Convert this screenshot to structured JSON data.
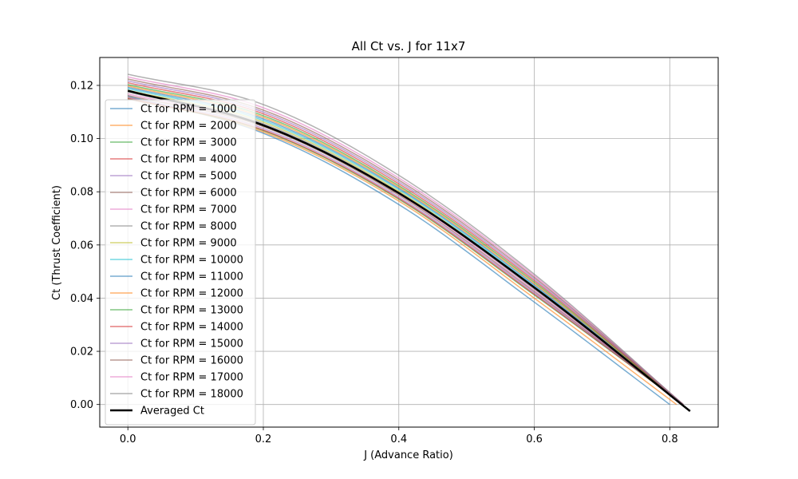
{
  "chart_data": {
    "type": "line",
    "title": "All Ct vs. J for 11x7",
    "xlabel": "J (Advance Ratio)",
    "ylabel": "Ct (Thrust Coefficient)",
    "xlim": [
      -0.0415,
      0.8715
    ],
    "ylim": [
      -0.0085,
      0.1305
    ],
    "xticks": [
      0.0,
      0.2,
      0.4,
      0.6,
      0.8
    ],
    "xtick_labels": [
      "0.0",
      "0.2",
      "0.4",
      "0.6",
      "0.8"
    ],
    "yticks": [
      0.0,
      0.02,
      0.04,
      0.06,
      0.08,
      0.1,
      0.12
    ],
    "ytick_labels": [
      "0.00",
      "0.02",
      "0.04",
      "0.06",
      "0.08",
      "0.10",
      "0.12"
    ],
    "grid": true,
    "legend_position": "left, overlapping plot area",
    "series": [
      {
        "name": "Ct for RPM = 1000",
        "color": "#1f77b4",
        "x": [
          0.0,
          0.2,
          0.4,
          0.6,
          0.8
        ],
        "y": [
          0.116,
          0.102,
          0.0752,
          0.0385,
          0.0
        ]
      },
      {
        "name": "Ct for RPM = 2000",
        "color": "#ff7f0e",
        "x": [
          0.0,
          0.2,
          0.4,
          0.6,
          0.81
        ],
        "y": [
          0.1155,
          0.1025,
          0.0765,
          0.04,
          0.0
        ]
      },
      {
        "name": "Ct for RPM = 3000",
        "color": "#2ca02c",
        "x": [
          0.0,
          0.2,
          0.4,
          0.6,
          0.82
        ],
        "y": [
          0.115,
          0.103,
          0.0772,
          0.0412,
          0.0
        ]
      },
      {
        "name": "Ct for RPM = 4000",
        "color": "#d62728",
        "x": [
          0.0,
          0.2,
          0.4,
          0.6,
          0.82
        ],
        "y": [
          0.115,
          0.1032,
          0.0775,
          0.0415,
          0.0
        ]
      },
      {
        "name": "Ct for RPM = 5000",
        "color": "#9467bd",
        "x": [
          0.0,
          0.2,
          0.4,
          0.6,
          0.82
        ],
        "y": [
          0.1155,
          0.1038,
          0.078,
          0.042,
          0.0
        ]
      },
      {
        "name": "Ct for RPM = 6000",
        "color": "#8c564b",
        "x": [
          0.0,
          0.2,
          0.4,
          0.6,
          0.82
        ],
        "y": [
          0.1162,
          0.1045,
          0.0787,
          0.0425,
          0.0
        ]
      },
      {
        "name": "Ct for RPM = 7000",
        "color": "#e377c2",
        "x": [
          0.0,
          0.2,
          0.4,
          0.6,
          0.82
        ],
        "y": [
          0.1168,
          0.105,
          0.0792,
          0.043,
          0.0
        ]
      },
      {
        "name": "Ct for RPM = 8000",
        "color": "#7f7f7f",
        "x": [
          0.0,
          0.2,
          0.4,
          0.6,
          0.82
        ],
        "y": [
          0.1175,
          0.1056,
          0.0797,
          0.0435,
          0.0
        ]
      },
      {
        "name": "Ct for RPM = 9000",
        "color": "#bcbd22",
        "x": [
          0.0,
          0.2,
          0.4,
          0.6,
          0.82
        ],
        "y": [
          0.1182,
          0.1062,
          0.0802,
          0.044,
          0.0
        ]
      },
      {
        "name": "Ct for RPM = 10000",
        "color": "#17becf",
        "x": [
          0.0,
          0.2,
          0.4,
          0.6,
          0.82
        ],
        "y": [
          0.1188,
          0.1068,
          0.0808,
          0.0445,
          0.0
        ]
      },
      {
        "name": "Ct for RPM = 11000",
        "color": "#1f77b4",
        "x": [
          0.0,
          0.2,
          0.4,
          0.6,
          0.82
        ],
        "y": [
          0.1193,
          0.1074,
          0.0813,
          0.045,
          0.0
        ]
      },
      {
        "name": "Ct for RPM = 12000",
        "color": "#ff7f0e",
        "x": [
          0.0,
          0.2,
          0.4,
          0.6,
          0.82
        ],
        "y": [
          0.1198,
          0.108,
          0.0818,
          0.0455,
          0.0
        ]
      },
      {
        "name": "Ct for RPM = 13000",
        "color": "#2ca02c",
        "x": [
          0.0,
          0.2,
          0.4,
          0.6,
          0.82
        ],
        "y": [
          0.1203,
          0.1086,
          0.0823,
          0.046,
          0.0
        ]
      },
      {
        "name": "Ct for RPM = 14000",
        "color": "#d62728",
        "x": [
          0.0,
          0.2,
          0.4,
          0.6,
          0.82
        ],
        "y": [
          0.121,
          0.1093,
          0.083,
          0.0466,
          0.0
        ]
      },
      {
        "name": "Ct for RPM = 15000",
        "color": "#9467bd",
        "x": [
          0.0,
          0.2,
          0.4,
          0.6,
          0.82
        ],
        "y": [
          0.1217,
          0.11,
          0.0837,
          0.0472,
          0.0
        ]
      },
      {
        "name": "Ct for RPM = 16000",
        "color": "#8c564b",
        "x": [
          0.0,
          0.2,
          0.4,
          0.6,
          0.82
        ],
        "y": [
          0.1224,
          0.1107,
          0.0844,
          0.0478,
          0.0
        ]
      },
      {
        "name": "Ct for RPM = 17000",
        "color": "#e377c2",
        "x": [
          0.0,
          0.2,
          0.4,
          0.6,
          0.82
        ],
        "y": [
          0.1232,
          0.1116,
          0.0852,
          0.0484,
          0.0
        ]
      },
      {
        "name": "Ct for RPM = 18000",
        "color": "#7f7f7f",
        "x": [
          0.0,
          0.2,
          0.4,
          0.6,
          0.82
        ],
        "y": [
          0.1242,
          0.1128,
          0.0862,
          0.049,
          0.0
        ]
      },
      {
        "name": "Averaged Ct",
        "color": "#000000",
        "x": [
          0.0,
          0.2,
          0.4,
          0.6,
          0.83
        ],
        "y": [
          0.118,
          0.105,
          0.0795,
          0.044,
          -0.0025
        ]
      }
    ]
  }
}
